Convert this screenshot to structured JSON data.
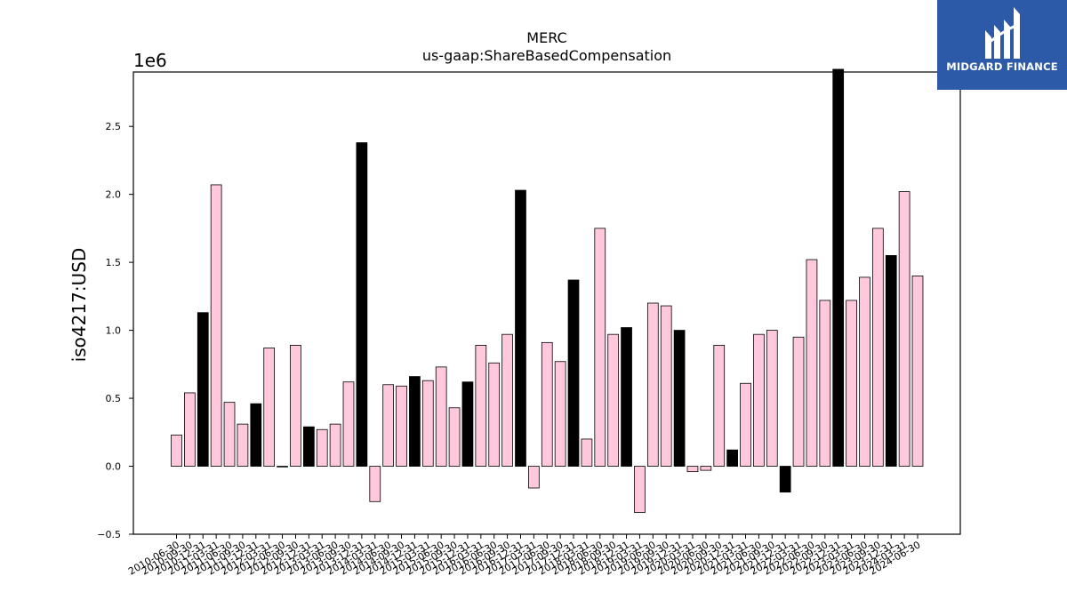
{
  "chart_data": {
    "type": "bar",
    "title": "MERC",
    "subtitle": "us-gaap:ShareBasedCompensation",
    "ylabel": "iso4217:USD",
    "y_offset_label": "1e6",
    "ylim": [
      -0.5,
      2.9
    ],
    "yticks": [
      "−0.5",
      "0.0",
      "0.5",
      "1.0",
      "1.5",
      "2.0",
      "2.5"
    ],
    "ytick_values": [
      -0.5,
      0.0,
      0.5,
      1.0,
      1.5,
      2.0,
      2.5
    ],
    "colors": {
      "pink": "#ffc8dd",
      "black": "#000000"
    },
    "categories": [
      "2010-06-30",
      "2010-09-30",
      "2010-12-31",
      "2011-03-31",
      "2011-06-30",
      "2011-09-30",
      "2011-12-31",
      "2012-03-31",
      "2012-06-30",
      "2012-09-30",
      "2012-12-31",
      "2013-03-31",
      "2013-06-30",
      "2013-09-30",
      "2013-12-31",
      "2014-03-31",
      "2014-06-30",
      "2014-09-30",
      "2014-12-31",
      "2015-03-31",
      "2015-06-30",
      "2015-09-30",
      "2015-12-31",
      "2016-03-31",
      "2016-06-30",
      "2016-09-30",
      "2016-12-31",
      "2017-03-31",
      "2017-06-30",
      "2017-09-30",
      "2017-12-31",
      "2018-03-31",
      "2018-06-30",
      "2018-09-30",
      "2018-12-31",
      "2019-03-31",
      "2019-06-30",
      "2019-09-30",
      "2019-12-31",
      "2020-03-31",
      "2020-06-30",
      "2020-09-30",
      "2020-12-31",
      "2021-03-31",
      "2021-06-30",
      "2021-09-30",
      "2021-12-31",
      "2022-03-31",
      "2022-06-30",
      "2022-09-30",
      "2022-12-31",
      "2023-03-31",
      "2023-06-30",
      "2023-09-30",
      "2023-12-31",
      "2024-03-31",
      "2024-06-30"
    ],
    "values": [
      0.23,
      0.54,
      1.13,
      2.07,
      0.47,
      0.31,
      0.46,
      0.87,
      0.0,
      0.89,
      0.29,
      0.27,
      0.31,
      0.62,
      2.38,
      -0.26,
      0.6,
      0.59,
      0.66,
      0.63,
      0.73,
      0.43,
      0.62,
      0.89,
      0.76,
      0.97,
      2.03,
      -0.16,
      0.91,
      0.77,
      1.37,
      0.2,
      1.75,
      0.97,
      1.02,
      -0.34,
      1.2,
      1.18,
      1.0,
      -0.04,
      -0.03,
      0.89,
      0.12,
      0.61,
      0.97,
      1.0,
      -0.19,
      0.95,
      1.52,
      1.22,
      2.92,
      1.22,
      1.39,
      1.75,
      1.55,
      2.02,
      1.4
    ],
    "bar_colors": [
      "pink",
      "pink",
      "black",
      "pink",
      "pink",
      "pink",
      "black",
      "pink",
      "pink",
      "pink",
      "black",
      "pink",
      "pink",
      "pink",
      "black",
      "pink",
      "pink",
      "pink",
      "black",
      "pink",
      "pink",
      "pink",
      "black",
      "pink",
      "pink",
      "pink",
      "black",
      "pink",
      "pink",
      "pink",
      "black",
      "pink",
      "pink",
      "pink",
      "black",
      "pink",
      "pink",
      "pink",
      "black",
      "pink",
      "pink",
      "pink",
      "black",
      "pink",
      "pink",
      "pink",
      "black",
      "pink",
      "pink",
      "pink",
      "black",
      "pink",
      "pink",
      "pink",
      "black",
      "pink",
      "pink"
    ],
    "grid": false,
    "legend": "none"
  },
  "logo": {
    "text": "MIDGARD FINANCE",
    "icon": "midgard-logo-icon",
    "background": "#2d5aa8"
  }
}
